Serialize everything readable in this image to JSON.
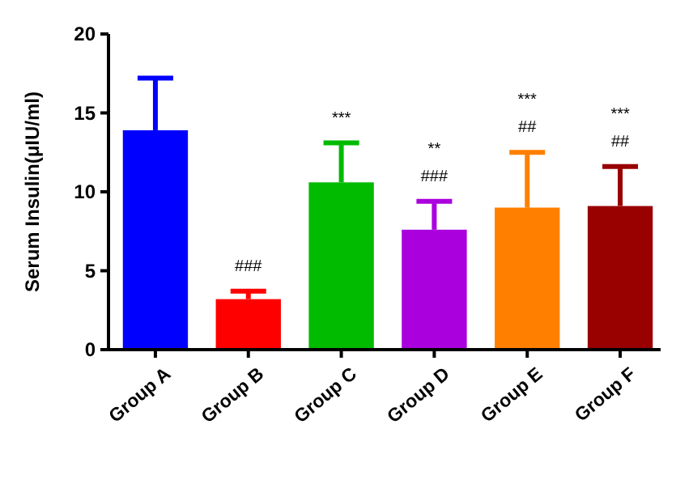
{
  "chart_data": {
    "type": "bar",
    "ylabel": "Serum Insulin(μIU/ml)",
    "categories": [
      "Group A",
      "Group B",
      "Group C",
      "Group D",
      "Group E",
      "Group F"
    ],
    "values": [
      13.9,
      3.2,
      10.6,
      7.6,
      9.0,
      9.1
    ],
    "colors": [
      "#0000ff",
      "#ff0000",
      "#00bb00",
      "#aa00dd",
      "#ff8000",
      "#990000"
    ],
    "errors": [
      [
        13.9,
        17.2
      ],
      [
        3.2,
        3.7
      ],
      [
        10.6,
        13.1
      ],
      [
        7.6,
        9.4
      ],
      [
        9.0,
        12.5
      ],
      [
        9.1,
        11.6
      ]
    ],
    "ylim": [
      0,
      20
    ],
    "yticks": [
      0,
      5,
      10,
      15,
      20
    ],
    "grid": false,
    "annotations": [
      "###",
      "***",
      "###",
      "**",
      "##",
      "***",
      "##",
      "***"
    ]
  }
}
